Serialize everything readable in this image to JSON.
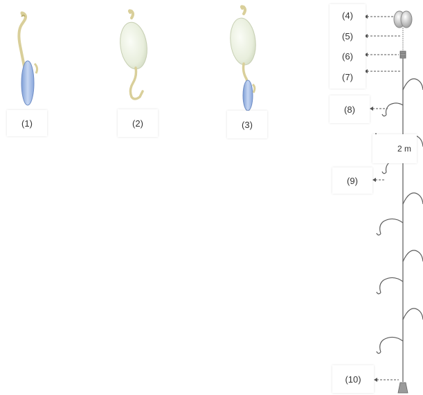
{
  "labels": {
    "l1": "(1)",
    "l2": "(2)",
    "l3": "(3)",
    "l4": "(4)",
    "l5": "(5)",
    "l6": "(6)",
    "l7": "(7)",
    "l8": "(8)",
    "l9": "(9)",
    "l10": "(10)"
  },
  "spacing": "2 m",
  "colors": {
    "line": "#7a7a7a",
    "hook": "#5a5a5a",
    "bait_blue": "#a9c3ea",
    "bait_white": "#eef2e6",
    "knot": "#d9cf9a"
  }
}
